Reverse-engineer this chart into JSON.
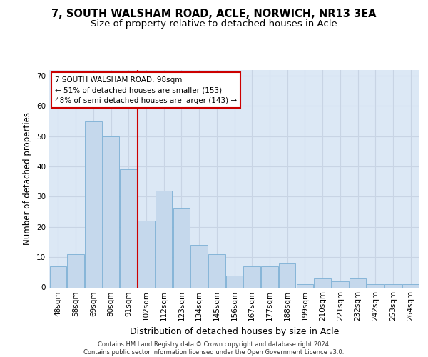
{
  "title_line1": "7, SOUTH WALSHAM ROAD, ACLE, NORWICH, NR13 3EA",
  "title_line2": "Size of property relative to detached houses in Acle",
  "xlabel": "Distribution of detached houses by size in Acle",
  "ylabel": "Number of detached properties",
  "bar_labels": [
    "48sqm",
    "58sqm",
    "69sqm",
    "80sqm",
    "91sqm",
    "102sqm",
    "112sqm",
    "123sqm",
    "134sqm",
    "145sqm",
    "156sqm",
    "167sqm",
    "177sqm",
    "188sqm",
    "199sqm",
    "210sqm",
    "221sqm",
    "232sqm",
    "242sqm",
    "253sqm",
    "264sqm"
  ],
  "bar_values": [
    7,
    11,
    55,
    50,
    39,
    22,
    32,
    26,
    14,
    11,
    4,
    7,
    7,
    8,
    1,
    3,
    2,
    3,
    1,
    1,
    1
  ],
  "bar_color": "#c5d8ec",
  "bar_edge_color": "#7aafd4",
  "grid_color": "#c8d4e4",
  "background_color": "#dce8f5",
  "annotation_text": "7 SOUTH WALSHAM ROAD: 98sqm\n← 51% of detached houses are smaller (153)\n48% of semi-detached houses are larger (143) →",
  "annotation_box_color": "white",
  "annotation_box_edge": "#cc0000",
  "vline_color": "#cc0000",
  "ylim": [
    0,
    72
  ],
  "yticks": [
    0,
    10,
    20,
    30,
    40,
    50,
    60,
    70
  ],
  "footer_text": "Contains HM Land Registry data © Crown copyright and database right 2024.\nContains public sector information licensed under the Open Government Licence v3.0.",
  "title_fontsize": 10.5,
  "subtitle_fontsize": 9.5,
  "ylabel_fontsize": 8.5,
  "xlabel_fontsize": 9,
  "tick_fontsize": 7.5,
  "annotation_fontsize": 7.5,
  "footer_fontsize": 6.0
}
